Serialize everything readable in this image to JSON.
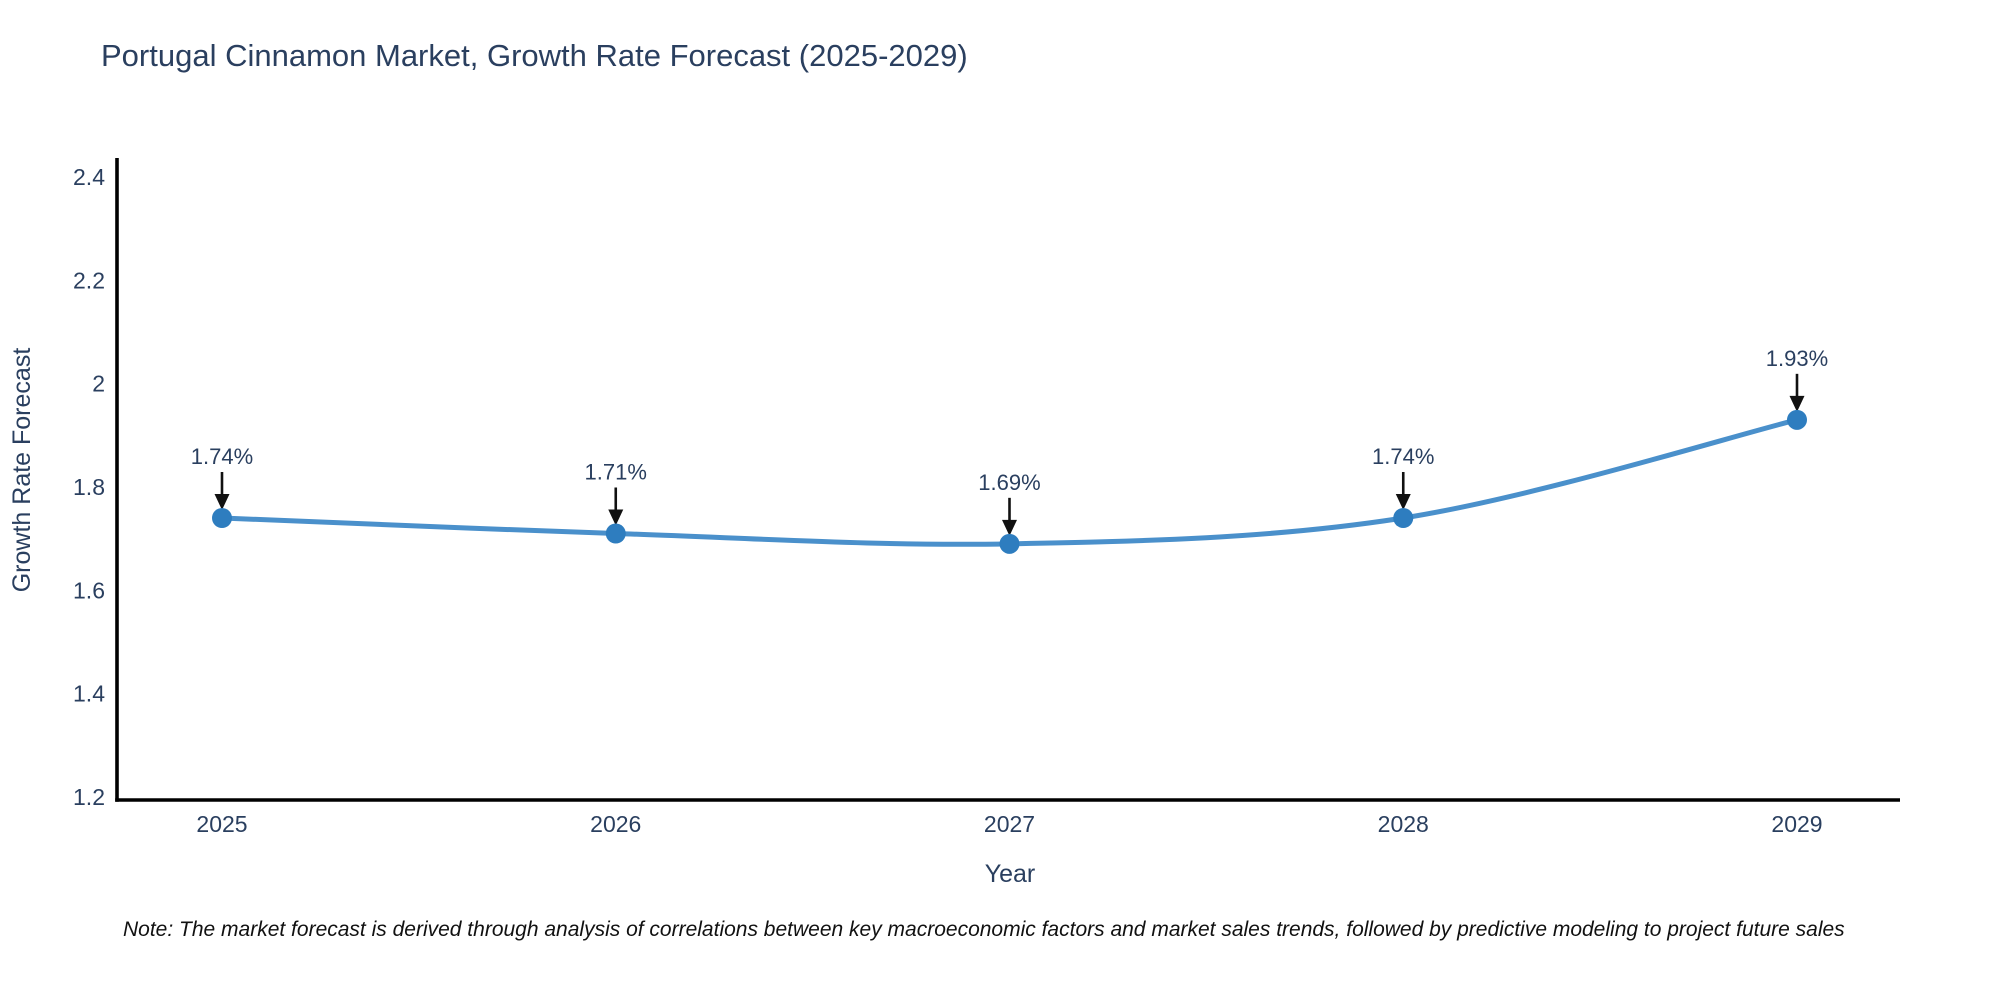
{
  "title": "Portugal Cinnamon Market, Growth Rate Forecast (2025-2029)",
  "note": "Note: The market forecast is derived through analysis of correlations between key macroeconomic factors and market sales trends, followed by predictive modeling to project future sales",
  "chart_data": {
    "type": "line",
    "title": "Portugal Cinnamon Market, Growth Rate Forecast (2025-2029)",
    "x": [
      "2025",
      "2026",
      "2027",
      "2028",
      "2029"
    ],
    "series": [
      {
        "name": "Growth Rate Forecast",
        "values": [
          1.74,
          1.71,
          1.69,
          1.74,
          1.93
        ]
      }
    ],
    "point_labels": [
      "1.74%",
      "1.71%",
      "1.69%",
      "1.74%",
      "1.93%"
    ],
    "xlabel": "Year",
    "ylabel": "Growth Rate Forecast",
    "ylim": [
      1.2,
      2.4
    ],
    "yticks": [
      1.2,
      1.4,
      1.6,
      1.8,
      2,
      2.2,
      2.4
    ],
    "grid": false,
    "legend": "none",
    "line_shape": "spline",
    "colors": {
      "line": "#4a90cb",
      "marker": "#2e7dbf",
      "axis": "#000000",
      "text": "#2a3f5f",
      "annotation_arrow": "#111111"
    }
  }
}
